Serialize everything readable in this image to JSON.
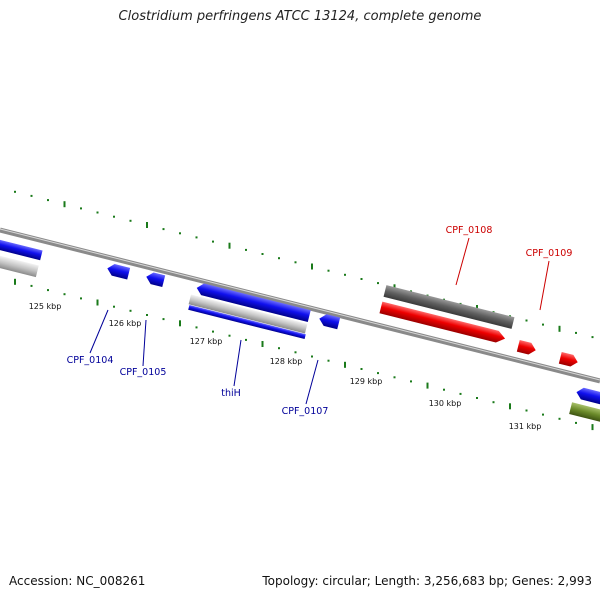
{
  "title": "Clostridium perfringens ATCC 13124, complete genome",
  "footer": {
    "accession": "Accession: NC_008261",
    "summary": "Topology: circular; Length: 3,256,683 bp; Genes: 2,993"
  },
  "colors": {
    "backbone": "#888888",
    "tick": "#1a7a1a",
    "forward_label": "#cc0000",
    "reverse_label": "#000099"
  },
  "scale_labels": [
    "125 kbp",
    "126 kbp",
    "127 kbp",
    "128 kbp",
    "129 kbp",
    "130 kbp",
    "131 kbp"
  ],
  "gene_labels": {
    "cpf0108": "CPF_0108",
    "cpf0109": "CPF_0109",
    "cpf0104": "CPF_0104",
    "cpf0105": "CPF_0105",
    "thih": "thiH",
    "cpf0107": "CPF_0107"
  }
}
